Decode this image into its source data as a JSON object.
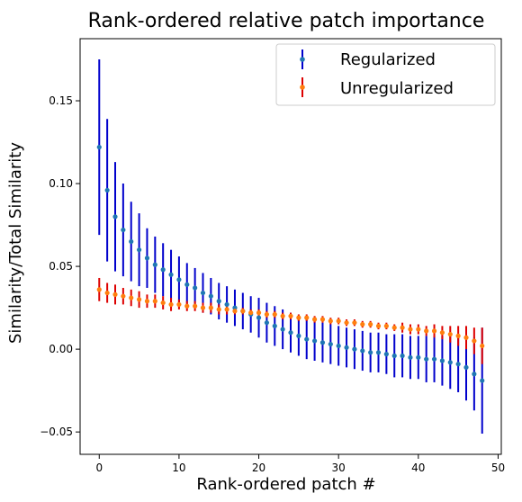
{
  "chart_data": {
    "type": "scatter",
    "title": "Rank-ordered relative patch importance",
    "xlabel": "Rank-ordered patch #",
    "ylabel": "Similarity/Total Similarity",
    "xlim": [
      -2.4,
      50.4
    ],
    "ylim": [
      -0.0635,
      0.1875
    ],
    "x_ticks": [
      0,
      10,
      20,
      30,
      40,
      50
    ],
    "x_tick_labels": [
      "0",
      "10",
      "20",
      "30",
      "40",
      "50"
    ],
    "y_ticks": [
      -0.05,
      0.0,
      0.05,
      0.1,
      0.15
    ],
    "y_tick_labels": [
      "−0.05",
      "0.00",
      "0.05",
      "0.10",
      "0.15"
    ],
    "grid": false,
    "legend_position": "top-right",
    "x": [
      0,
      1,
      2,
      3,
      4,
      5,
      6,
      7,
      8,
      9,
      10,
      11,
      12,
      13,
      14,
      15,
      16,
      17,
      18,
      19,
      20,
      21,
      22,
      23,
      24,
      25,
      26,
      27,
      28,
      29,
      30,
      31,
      32,
      33,
      34,
      35,
      36,
      37,
      38,
      39,
      40,
      41,
      42,
      43,
      44,
      45,
      46,
      47,
      48
    ],
    "series": [
      {
        "name": "Regularized",
        "marker_color": "#1f77b4",
        "error_color": "#0000cc",
        "values": [
          0.122,
          0.096,
          0.08,
          0.072,
          0.065,
          0.06,
          0.055,
          0.051,
          0.048,
          0.045,
          0.042,
          0.039,
          0.037,
          0.034,
          0.032,
          0.029,
          0.027,
          0.025,
          0.023,
          0.021,
          0.019,
          0.016,
          0.014,
          0.012,
          0.01,
          0.008,
          0.006,
          0.005,
          0.004,
          0.003,
          0.002,
          0.001,
          0.0,
          -0.001,
          -0.002,
          -0.002,
          -0.003,
          -0.004,
          -0.004,
          -0.005,
          -0.005,
          -0.006,
          -0.006,
          -0.007,
          -0.008,
          -0.009,
          -0.011,
          -0.015,
          -0.019
        ],
        "errors": [
          0.053,
          0.043,
          0.033,
          0.028,
          0.024,
          0.022,
          0.018,
          0.017,
          0.016,
          0.015,
          0.014,
          0.013,
          0.012,
          0.012,
          0.011,
          0.011,
          0.011,
          0.011,
          0.011,
          0.011,
          0.012,
          0.012,
          0.012,
          0.012,
          0.012,
          0.012,
          0.012,
          0.012,
          0.012,
          0.012,
          0.012,
          0.012,
          0.012,
          0.012,
          0.012,
          0.012,
          0.012,
          0.013,
          0.013,
          0.013,
          0.013,
          0.014,
          0.014,
          0.015,
          0.016,
          0.017,
          0.02,
          0.022,
          0.032
        ]
      },
      {
        "name": "Unregularized",
        "marker_color": "#ff7f0e",
        "error_color": "#dd0000",
        "values": [
          0.036,
          0.034,
          0.033,
          0.032,
          0.031,
          0.03,
          0.029,
          0.029,
          0.028,
          0.027,
          0.027,
          0.026,
          0.026,
          0.025,
          0.025,
          0.024,
          0.024,
          0.023,
          0.023,
          0.022,
          0.022,
          0.021,
          0.021,
          0.02,
          0.02,
          0.019,
          0.019,
          0.018,
          0.018,
          0.017,
          0.017,
          0.016,
          0.016,
          0.015,
          0.015,
          0.014,
          0.014,
          0.013,
          0.013,
          0.012,
          0.012,
          0.011,
          0.011,
          0.01,
          0.009,
          0.008,
          0.007,
          0.005,
          0.002
        ],
        "errors": [
          0.007,
          0.006,
          0.006,
          0.005,
          0.005,
          0.005,
          0.004,
          0.004,
          0.004,
          0.004,
          0.003,
          0.003,
          0.003,
          0.003,
          0.003,
          0.003,
          0.003,
          0.002,
          0.002,
          0.002,
          0.002,
          0.002,
          0.002,
          0.002,
          0.002,
          0.002,
          0.002,
          0.002,
          0.002,
          0.002,
          0.002,
          0.002,
          0.002,
          0.002,
          0.002,
          0.002,
          0.002,
          0.002,
          0.003,
          0.003,
          0.003,
          0.003,
          0.004,
          0.004,
          0.005,
          0.006,
          0.007,
          0.008,
          0.011
        ]
      }
    ]
  }
}
